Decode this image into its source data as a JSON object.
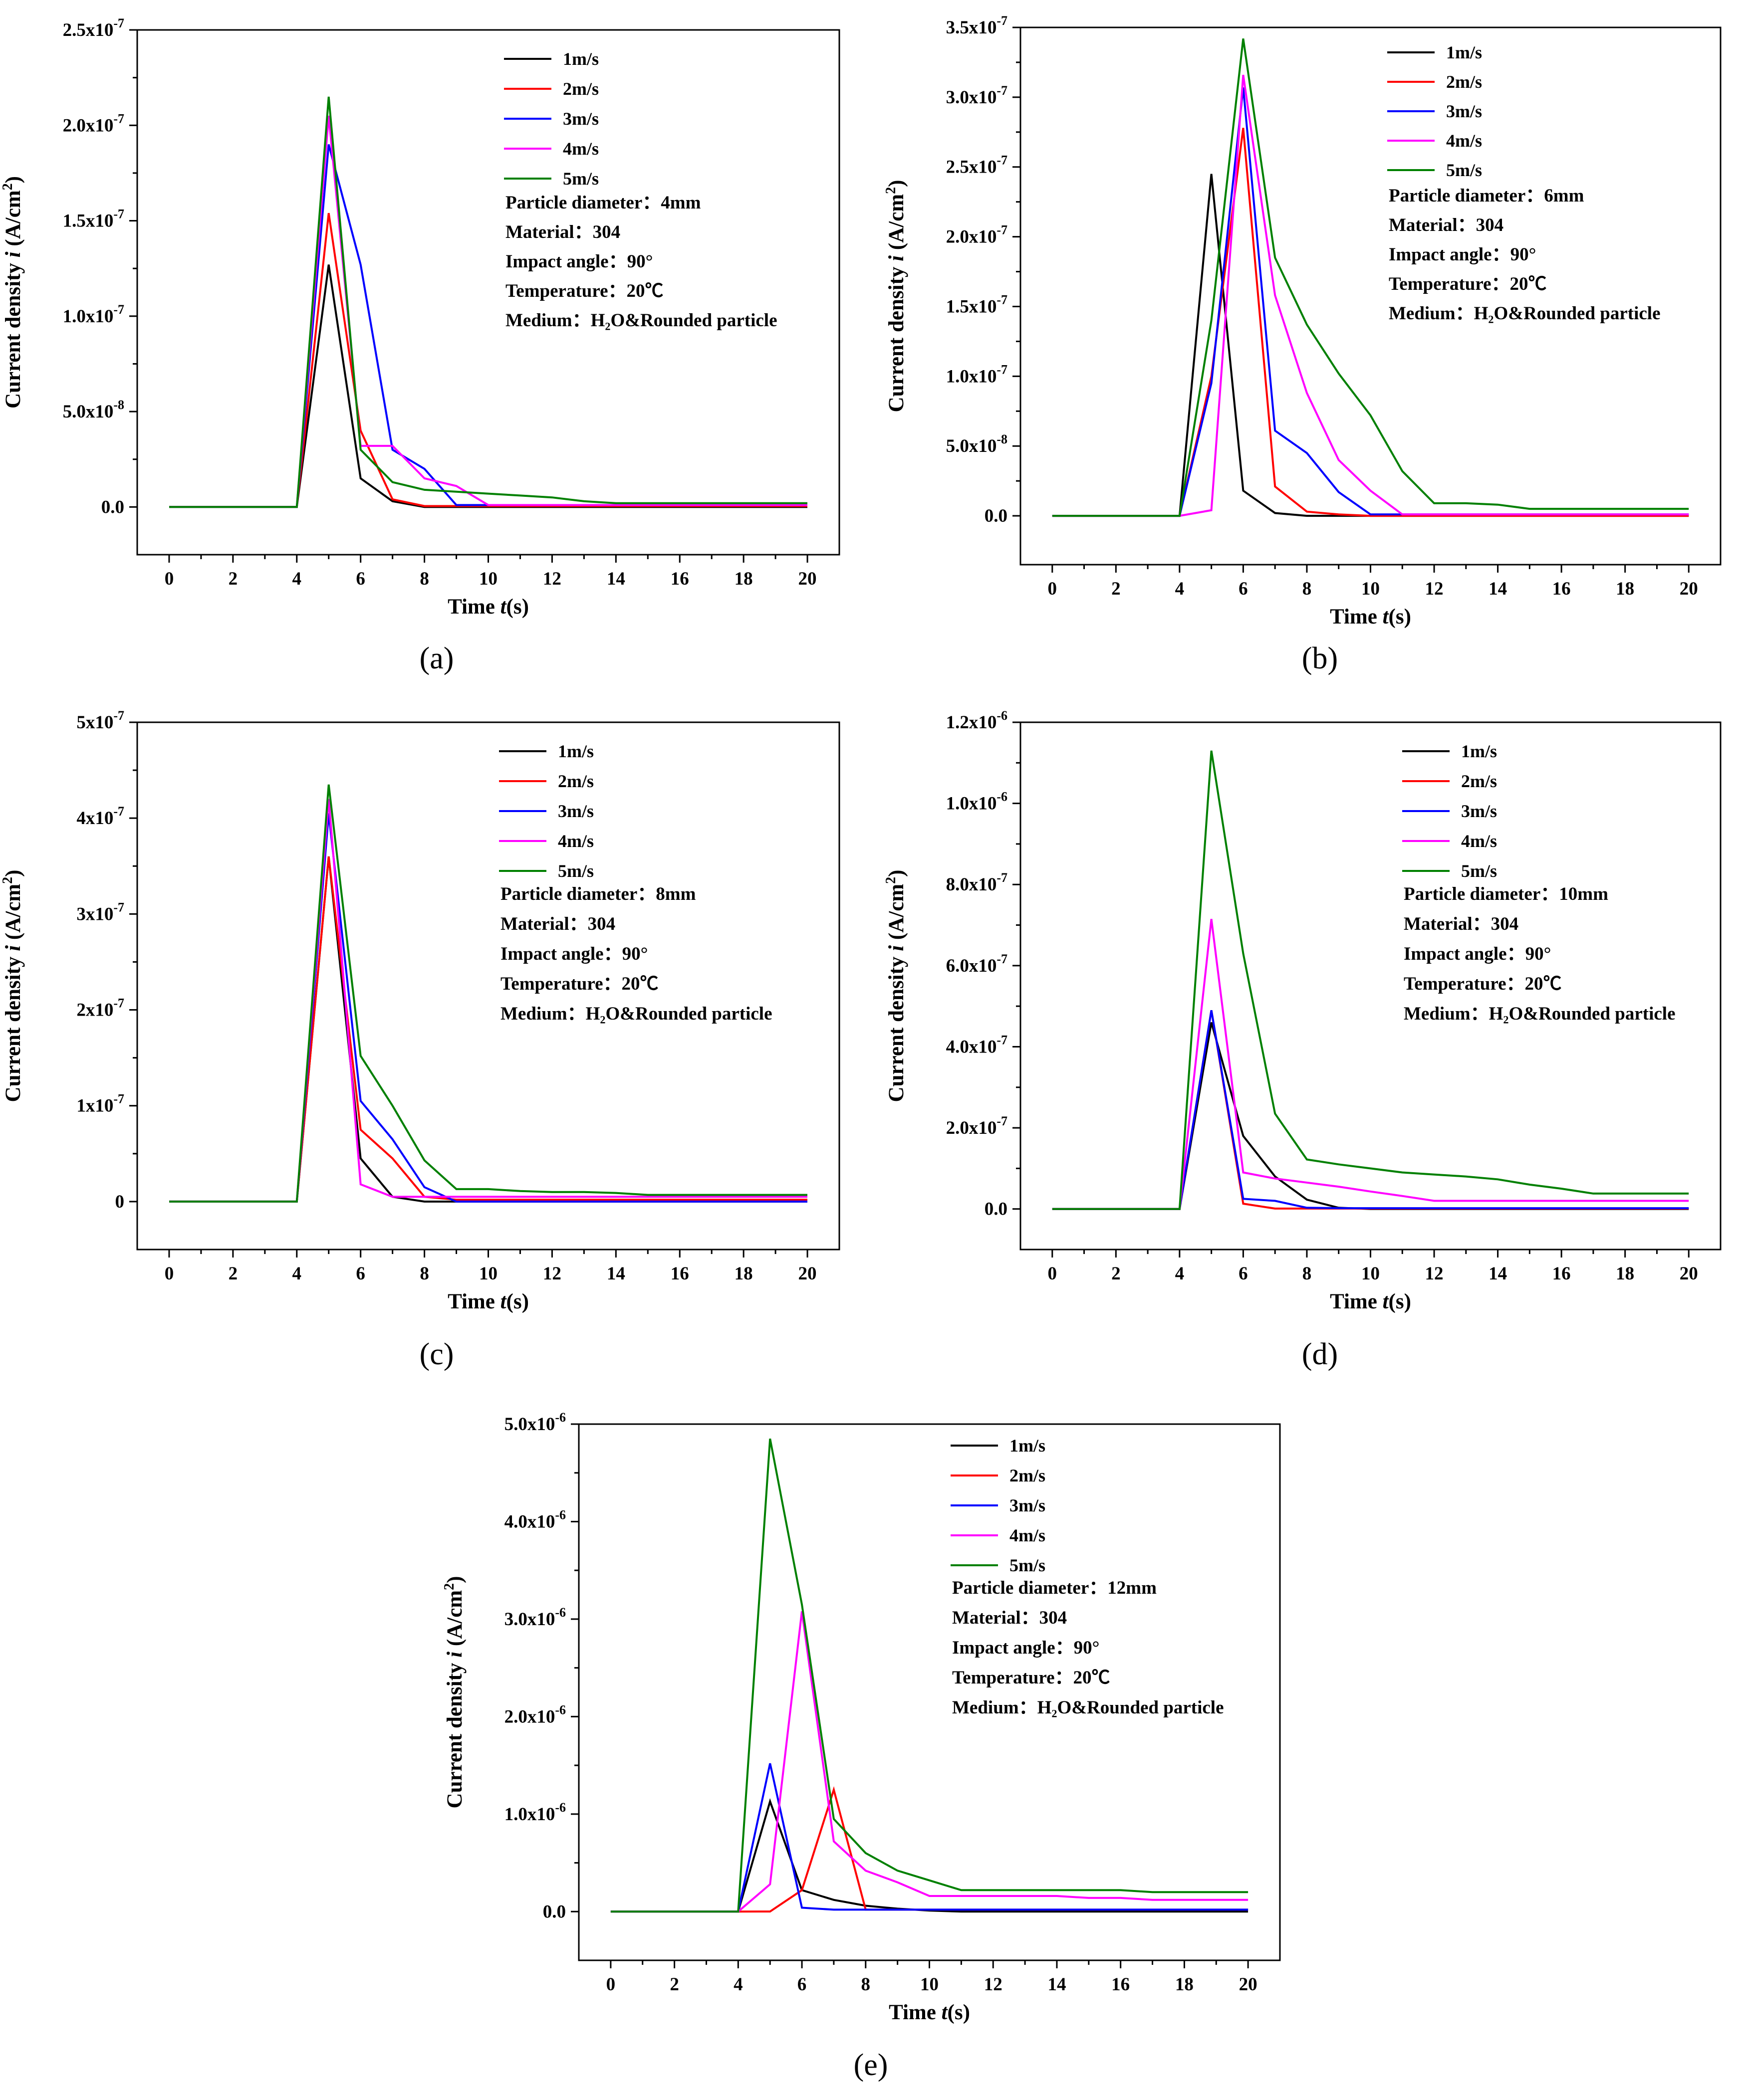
{
  "chart_data": [
    {
      "type": "line",
      "panel": "a",
      "panel_label": "(a)",
      "x": [
        0,
        1,
        2,
        3,
        4,
        5,
        6,
        7,
        8,
        9,
        10,
        11,
        12,
        13,
        14,
        15,
        16,
        17,
        18,
        19,
        20
      ],
      "ylim": [
        -2.5e-08,
        2.5e-07
      ],
      "yticks": [
        0,
        5e-08,
        1e-07,
        1.5e-07,
        2e-07,
        2.5e-07
      ],
      "ytick_labels": [
        "0.0",
        "5.0x10^-8",
        "1.0x10^-7",
        "1.5x10^-7",
        "2.0x10^-7",
        "2.5x10^-7"
      ],
      "xlabel": "Time t(s)",
      "ylabel": "Current density i (A/cm2)",
      "xlabel_main": "Time ",
      "xlabel_italic": "t",
      "xlabel_tail": "(s)",
      "ylabel_main": "Current density ",
      "ylabel_italic": "i",
      "ylabel_tail": " (A/cm",
      "ylabel_sup": "2",
      "ylabel_close": ")",
      "series": [
        {
          "name": "1m/s",
          "color": "#000000",
          "values": [
            0,
            0,
            0,
            0,
            0,
            1.27e-07,
            1.5e-08,
            3e-09,
            0,
            0,
            0,
            0,
            0,
            0,
            0,
            0,
            0,
            0,
            0,
            0,
            0
          ]
        },
        {
          "name": "2m/s",
          "color": "#ff0000",
          "values": [
            0,
            0,
            0,
            0,
            0,
            1.54e-07,
            4e-08,
            4e-09,
            5e-10,
            5e-10,
            5e-10,
            5e-10,
            5e-10,
            5e-10,
            5e-10,
            5e-10,
            5e-10,
            5e-10,
            5e-10,
            5e-10,
            5e-10
          ]
        },
        {
          "name": "3m/s",
          "color": "#0000ff",
          "values": [
            0,
            0,
            0,
            0,
            0,
            1.9e-07,
            1.27e-07,
            3e-08,
            2e-08,
            1e-09,
            1e-09,
            1e-09,
            1e-09,
            1e-09,
            1e-09,
            1e-09,
            1e-09,
            1e-09,
            1e-09,
            1e-09,
            1e-09
          ]
        },
        {
          "name": "4m/s",
          "color": "#ff00ff",
          "values": [
            0,
            0,
            0,
            0,
            0,
            2.05e-07,
            3.2e-08,
            3.2e-08,
            1.5e-08,
            1.1e-08,
            1e-09,
            1e-09,
            1e-09,
            1e-09,
            1e-09,
            1e-09,
            1e-09,
            1e-09,
            1e-09,
            1e-09,
            1e-09
          ]
        },
        {
          "name": "5m/s",
          "color": "#008000",
          "values": [
            0,
            0,
            0,
            0,
            0,
            2.15e-07,
            3e-08,
            1.3e-08,
            9e-09,
            8e-09,
            7e-09,
            6e-09,
            5e-09,
            3e-09,
            2e-09,
            2e-09,
            2e-09,
            2e-09,
            2e-09,
            2e-09,
            2e-09
          ]
        }
      ],
      "annotations": [
        {
          "label": "Particle diameter：",
          "value": "4mm"
        },
        {
          "label": "Material：",
          "value": "304"
        },
        {
          "label": "Impact angle：",
          "value": "90°"
        },
        {
          "label": "Temperature：",
          "value": "20℃"
        },
        {
          "label": "Medium：",
          "value": "H₂O&Rounded particle"
        }
      ]
    },
    {
      "type": "line",
      "panel": "b",
      "panel_label": "(b)",
      "x": [
        0,
        1,
        2,
        3,
        4,
        5,
        6,
        7,
        8,
        9,
        10,
        11,
        12,
        13,
        14,
        15,
        16,
        17,
        18,
        19,
        20
      ],
      "ylim": [
        -3.5e-08,
        3.5e-07
      ],
      "yticks": [
        0,
        5e-08,
        1e-07,
        1.5e-07,
        2e-07,
        2.5e-07,
        3e-07,
        3.5e-07
      ],
      "ytick_labels": [
        "0.0",
        "5.0x10^-8",
        "1.0x10^-7",
        "1.5x10^-7",
        "2.0x10^-7",
        "2.5x10^-7",
        "3.0x10^-7",
        "3.5x10^-7"
      ],
      "xlabel": "Time t(s)",
      "ylabel": "Current density i (A/cm2)",
      "xlabel_main": "Time ",
      "xlabel_italic": "t",
      "xlabel_tail": "(s)",
      "ylabel_main": "Current density ",
      "ylabel_italic": "i",
      "ylabel_tail": " (A/cm",
      "ylabel_sup": "2",
      "ylabel_close": ")",
      "series": [
        {
          "name": "1m/s",
          "color": "#000000",
          "values": [
            0,
            0,
            0,
            0,
            0,
            2.45e-07,
            1.8e-08,
            2e-09,
            0,
            0,
            0,
            0,
            0,
            0,
            0,
            0,
            0,
            0,
            0,
            0,
            0
          ]
        },
        {
          "name": "2m/s",
          "color": "#ff0000",
          "values": [
            0,
            0,
            0,
            0,
            0,
            1e-07,
            2.78e-07,
            2.1e-08,
            3e-09,
            1e-09,
            0,
            0,
            0,
            0,
            0,
            0,
            0,
            0,
            0,
            0,
            0
          ]
        },
        {
          "name": "3m/s",
          "color": "#0000ff",
          "values": [
            0,
            0,
            0,
            0,
            0,
            9.5e-08,
            3.07e-07,
            6.1e-08,
            4.5e-08,
            1.7e-08,
            1e-09,
            1e-09,
            1e-09,
            1e-09,
            1e-09,
            1e-09,
            1e-09,
            1e-09,
            1e-09,
            1e-09,
            1e-09
          ]
        },
        {
          "name": "4m/s",
          "color": "#ff00ff",
          "values": [
            0,
            0,
            0,
            0,
            0,
            4e-09,
            3.16e-07,
            1.58e-07,
            8.8e-08,
            4e-08,
            1.8e-08,
            1e-09,
            1e-09,
            1e-09,
            1e-09,
            1e-09,
            1e-09,
            1e-09,
            1e-09,
            1e-09,
            1e-09
          ]
        },
        {
          "name": "5m/s",
          "color": "#008000",
          "values": [
            0,
            0,
            0,
            0,
            0,
            1.4e-07,
            3.42e-07,
            1.85e-07,
            1.37e-07,
            1.02e-07,
            7.2e-08,
            3.2e-08,
            9e-09,
            9e-09,
            8e-09,
            5e-09,
            5e-09,
            5e-09,
            5e-09,
            5e-09,
            5e-09
          ]
        }
      ],
      "annotations": [
        {
          "label": "Particle diameter：",
          "value": "6mm"
        },
        {
          "label": "Material：",
          "value": "304"
        },
        {
          "label": "Impact angle：",
          "value": "90°"
        },
        {
          "label": "Temperature：",
          "value": "20℃"
        },
        {
          "label": "Medium：",
          "value": "H₂O&Rounded particle"
        }
      ]
    },
    {
      "type": "line",
      "panel": "c",
      "panel_label": "(c)",
      "x": [
        0,
        1,
        2,
        3,
        4,
        5,
        6,
        7,
        8,
        9,
        10,
        11,
        12,
        13,
        14,
        15,
        16,
        17,
        18,
        19,
        20
      ],
      "ylim": [
        -5e-08,
        5e-07
      ],
      "yticks": [
        0,
        1e-07,
        2e-07,
        3e-07,
        4e-07,
        5e-07
      ],
      "ytick_labels": [
        "0",
        "1x10^-7",
        "2x10^-7",
        "3x10^-7",
        "4x10^-7",
        "5x10^-7"
      ],
      "xlabel": "Time t(s)",
      "ylabel": "Current density i (A/cm2)",
      "xlabel_main": "Time ",
      "xlabel_italic": "t",
      "xlabel_tail": "(s)",
      "ylabel_main": "Current density ",
      "ylabel_italic": "i",
      "ylabel_tail": " (A/cm",
      "ylabel_sup": "2",
      "ylabel_close": ")",
      "series": [
        {
          "name": "1m/s",
          "color": "#000000",
          "values": [
            0,
            0,
            0,
            0,
            0,
            3.6e-07,
            4.5e-08,
            5e-09,
            0,
            0,
            0,
            0,
            0,
            0,
            0,
            0,
            0,
            0,
            0,
            0,
            0
          ]
        },
        {
          "name": "2m/s",
          "color": "#ff0000",
          "values": [
            0,
            0,
            0,
            0,
            0,
            3.6e-07,
            7.5e-08,
            4.5e-08,
            5e-09,
            2e-09,
            2e-09,
            2e-09,
            2e-09,
            2e-09,
            2e-09,
            2e-09,
            2e-09,
            2e-09,
            2e-09,
            2e-09,
            2e-09
          ]
        },
        {
          "name": "3m/s",
          "color": "#0000ff",
          "values": [
            0,
            0,
            0,
            0,
            0,
            4.05e-07,
            1.05e-07,
            6.5e-08,
            1.5e-08,
            0,
            0,
            0,
            0,
            0,
            0,
            0,
            0,
            0,
            0,
            0,
            0
          ]
        },
        {
          "name": "4m/s",
          "color": "#ff00ff",
          "values": [
            0,
            0,
            0,
            0,
            0,
            4.2e-07,
            1.8e-08,
            5e-09,
            5e-09,
            5e-09,
            5e-09,
            5e-09,
            5e-09,
            5e-09,
            5e-09,
            5e-09,
            5e-09,
            5e-09,
            5e-09,
            5e-09,
            5e-09
          ]
        },
        {
          "name": "5m/s",
          "color": "#008000",
          "values": [
            0,
            0,
            0,
            0,
            0,
            4.35e-07,
            1.52e-07,
            1e-07,
            4.3e-08,
            1.3e-08,
            1.3e-08,
            1.1e-08,
            1e-08,
            1e-08,
            9e-09,
            7e-09,
            7e-09,
            7e-09,
            7e-09,
            7e-09,
            7e-09
          ]
        }
      ],
      "annotations": [
        {
          "label": "Particle diameter：",
          "value": "8mm"
        },
        {
          "label": "Material：",
          "value": "304"
        },
        {
          "label": "Impact angle：",
          "value": "90°"
        },
        {
          "label": "Temperature：",
          "value": "20℃"
        },
        {
          "label": "Medium：",
          "value": "H₂O&Rounded particle"
        }
      ]
    },
    {
      "type": "line",
      "panel": "d",
      "panel_label": "(d)",
      "x": [
        0,
        1,
        2,
        3,
        4,
        5,
        6,
        7,
        8,
        9,
        10,
        11,
        12,
        13,
        14,
        15,
        16,
        17,
        18,
        19,
        20
      ],
      "ylim": [
        -1e-07,
        1.2e-06
      ],
      "yticks": [
        0,
        2e-07,
        4e-07,
        6e-07,
        8e-07,
        1e-06,
        1.2e-06
      ],
      "ytick_labels": [
        "0.0",
        "2.0x10^-7",
        "4.0x10^-7",
        "6.0x10^-7",
        "8.0x10^-7",
        "1.0x10^-6",
        "1.2x10^-6"
      ],
      "xlabel": "Time t(s)",
      "ylabel": "Current density i (A/cm2)",
      "xlabel_main": "Time ",
      "xlabel_italic": "t",
      "xlabel_tail": "(s)",
      "ylabel_main": "Current density ",
      "ylabel_italic": "i",
      "ylabel_tail": " (A/cm",
      "ylabel_sup": "2",
      "ylabel_close": ")",
      "series": [
        {
          "name": "1m/s",
          "color": "#000000",
          "values": [
            0,
            0,
            0,
            0,
            0,
            4.6e-07,
            1.8e-07,
            8e-08,
            2.3e-08,
            3e-09,
            0,
            0,
            0,
            0,
            0,
            0,
            0,
            0,
            0,
            0,
            0
          ]
        },
        {
          "name": "2m/s",
          "color": "#ff0000",
          "values": [
            0,
            0,
            0,
            0,
            0,
            4.9e-07,
            1.3e-08,
            1e-09,
            1e-09,
            1e-09,
            1e-09,
            1e-09,
            1e-09,
            1e-09,
            1e-09,
            1e-09,
            1e-09,
            1e-09,
            1e-09,
            1e-09,
            1e-09
          ]
        },
        {
          "name": "3m/s",
          "color": "#0000ff",
          "values": [
            0,
            0,
            0,
            0,
            0,
            4.9e-07,
            2.5e-08,
            2e-08,
            3e-09,
            2e-09,
            2e-09,
            2e-09,
            2e-09,
            2e-09,
            2e-09,
            2e-09,
            2e-09,
            2e-09,
            2e-09,
            2e-09,
            2e-09
          ]
        },
        {
          "name": "4m/s",
          "color": "#ff00ff",
          "values": [
            0,
            0,
            0,
            0,
            0,
            7.15e-07,
            9e-08,
            7.5e-08,
            6.5e-08,
            5.5e-08,
            4.3e-08,
            3.2e-08,
            2e-08,
            2e-08,
            2e-08,
            2e-08,
            2e-08,
            2e-08,
            2e-08,
            2e-08,
            2e-08
          ]
        },
        {
          "name": "5m/s",
          "color": "#008000",
          "values": [
            0,
            0,
            0,
            0,
            0,
            1.13e-06,
            6.3e-07,
            2.35e-07,
            1.22e-07,
            1.1e-07,
            1e-07,
            9e-08,
            8.5e-08,
            8e-08,
            7.3e-08,
            6e-08,
            5e-08,
            3.8e-08,
            3.8e-08,
            3.8e-08,
            3.8e-08
          ]
        }
      ],
      "annotations": [
        {
          "label": "Particle diameter：",
          "value": "10mm"
        },
        {
          "label": "Material：",
          "value": "304"
        },
        {
          "label": "Impact angle：",
          "value": "90°"
        },
        {
          "label": "Temperature：",
          "value": "20℃"
        },
        {
          "label": "Medium：",
          "value": "H₂O&Rounded particle"
        }
      ]
    },
    {
      "type": "line",
      "panel": "e",
      "panel_label": "(e)",
      "x": [
        0,
        1,
        2,
        3,
        4,
        5,
        6,
        7,
        8,
        9,
        10,
        11,
        12,
        13,
        14,
        15,
        16,
        17,
        18,
        19,
        20
      ],
      "ylim": [
        -5e-07,
        5e-06
      ],
      "yticks": [
        0,
        1e-06,
        2e-06,
        3e-06,
        4e-06,
        5e-06
      ],
      "ytick_labels": [
        "0.0",
        "1.0x10^-6",
        "2.0x10^-6",
        "3.0x10^-6",
        "4.0x10^-6",
        "5.0x10^-6"
      ],
      "xlabel": "Time t(s)",
      "ylabel": "Current density i (A/cm2)",
      "xlabel_main": "Time ",
      "xlabel_italic": "t",
      "xlabel_tail": "(s)",
      "ylabel_main": "Current density ",
      "ylabel_italic": "i",
      "ylabel_tail": " (A/cm",
      "ylabel_sup": "2",
      "ylabel_close": ")",
      "series": [
        {
          "name": "1m/s",
          "color": "#000000",
          "values": [
            0,
            0,
            0,
            0,
            0,
            1.13e-06,
            2.2e-07,
            1.2e-07,
            6e-08,
            3e-08,
            1e-08,
            0,
            0,
            0,
            0,
            0,
            0,
            0,
            0,
            0,
            0
          ]
        },
        {
          "name": "2m/s",
          "color": "#ff0000",
          "values": [
            0,
            0,
            0,
            0,
            0,
            1e-09,
            2.2e-07,
            1.25e-06,
            2e-08,
            2e-08,
            2e-08,
            2e-08,
            2e-08,
            2e-08,
            2e-08,
            2e-08,
            2e-08,
            2e-08,
            2e-08,
            2e-08,
            2e-08
          ]
        },
        {
          "name": "3m/s",
          "color": "#0000ff",
          "values": [
            0,
            0,
            0,
            0,
            0,
            1.52e-06,
            4e-08,
            2e-08,
            2e-08,
            2e-08,
            2e-08,
            2e-08,
            2e-08,
            2e-08,
            2e-08,
            2e-08,
            2e-08,
            2e-08,
            2e-08,
            2e-08,
            2e-08
          ]
        },
        {
          "name": "4m/s",
          "color": "#ff00ff",
          "values": [
            0,
            0,
            0,
            0,
            0,
            2.8e-07,
            3.08e-06,
            7.2e-07,
            4.2e-07,
            3e-07,
            1.6e-07,
            1.6e-07,
            1.6e-07,
            1.6e-07,
            1.6e-07,
            1.4e-07,
            1.4e-07,
            1.2e-07,
            1.2e-07,
            1.2e-07,
            1.2e-07
          ]
        },
        {
          "name": "5m/s",
          "color": "#008000",
          "values": [
            0,
            0,
            0,
            0,
            0,
            4.85e-06,
            3.15e-06,
            9.5e-07,
            6e-07,
            4.2e-07,
            3.2e-07,
            2.2e-07,
            2.2e-07,
            2.2e-07,
            2.2e-07,
            2.2e-07,
            2.2e-07,
            2e-07,
            2e-07,
            2e-07,
            2e-07
          ]
        }
      ],
      "annotations": [
        {
          "label": "Particle diameter：",
          "value": "12mm"
        },
        {
          "label": "Material：",
          "value": "304"
        },
        {
          "label": "Impact angle：",
          "value": "90°"
        },
        {
          "label": "Temperature：",
          "value": "20℃"
        },
        {
          "label": "Medium：",
          "value": "H₂O&Rounded particle"
        }
      ]
    }
  ]
}
